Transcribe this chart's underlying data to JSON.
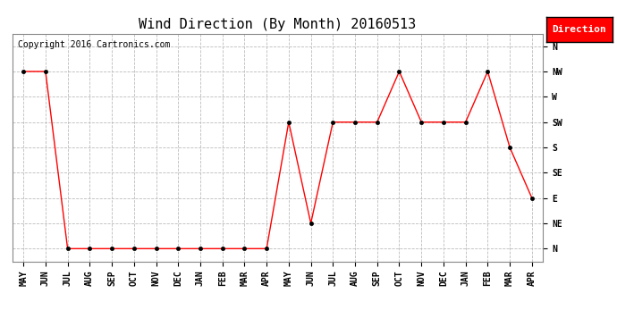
{
  "title": "Wind Direction (By Month) 20160513",
  "copyright_text": "Copyright 2016 Cartronics.com",
  "legend_label": "Direction",
  "legend_bg": "#ff0000",
  "legend_text_color": "#ffffff",
  "x_labels": [
    "MAY",
    "JUN",
    "JUL",
    "AUG",
    "SEP",
    "OCT",
    "NOV",
    "DEC",
    "JAN",
    "FEB",
    "MAR",
    "APR",
    "MAY",
    "JUN",
    "JUL",
    "AUG",
    "SEP",
    "OCT",
    "NOV",
    "DEC",
    "JAN",
    "FEB",
    "MAR",
    "APR"
  ],
  "y_tick_labels": [
    "N",
    "NE",
    "E",
    "SE",
    "S",
    "SW",
    "W",
    "NW",
    "N"
  ],
  "data_points": [
    7,
    7,
    0,
    0,
    0,
    0,
    0,
    0,
    0,
    0,
    0,
    0,
    5,
    1,
    5,
    5,
    5,
    7,
    5,
    5,
    5,
    7,
    4,
    2
  ],
  "line_color": "#ff0000",
  "marker_color": "#000000",
  "marker_size": 3,
  "background_color": "#ffffff",
  "grid_color": "#bbbbbb",
  "title_fontsize": 11,
  "tick_fontsize": 7,
  "copyright_fontsize": 7,
  "fig_width": 6.9,
  "fig_height": 3.75,
  "dpi": 100
}
